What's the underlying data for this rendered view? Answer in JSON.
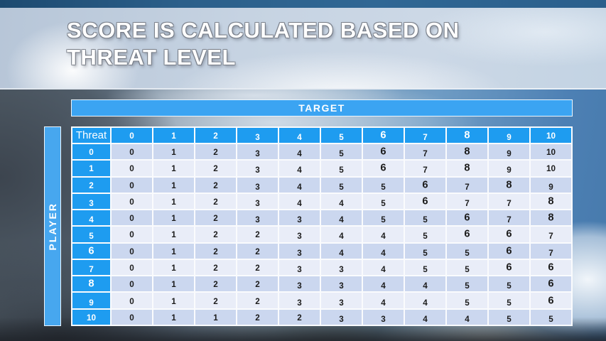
{
  "slide": {
    "title_line1": "SCORE IS CALCULATED BASED ON",
    "title_line2": "THREAT LEVEL"
  },
  "table": {
    "target_label": "TARGET",
    "player_label": "PLAYER",
    "corner_label": "Threat",
    "column_headers": [
      "0",
      "1",
      "2",
      "3",
      "4",
      "5",
      "6",
      "7",
      "8",
      "9",
      "10"
    ],
    "rows": [
      {
        "label": "0",
        "values": [
          0,
          1,
          2,
          3,
          4,
          5,
          6,
          7,
          8,
          9,
          10
        ]
      },
      {
        "label": "1",
        "values": [
          0,
          1,
          2,
          3,
          4,
          5,
          6,
          7,
          8,
          9,
          10
        ]
      },
      {
        "label": "2",
        "values": [
          0,
          1,
          2,
          3,
          4,
          5,
          5,
          6,
          7,
          8,
          9
        ]
      },
      {
        "label": "3",
        "values": [
          0,
          1,
          2,
          3,
          4,
          4,
          5,
          6,
          7,
          7,
          8
        ]
      },
      {
        "label": "4",
        "values": [
          0,
          1,
          2,
          3,
          3,
          4,
          5,
          5,
          6,
          7,
          8
        ]
      },
      {
        "label": "5",
        "values": [
          0,
          1,
          2,
          2,
          3,
          4,
          4,
          5,
          6,
          6,
          7
        ]
      },
      {
        "label": "6",
        "values": [
          0,
          1,
          2,
          2,
          3,
          4,
          4,
          5,
          5,
          6,
          7
        ]
      },
      {
        "label": "7",
        "values": [
          0,
          1,
          2,
          2,
          3,
          3,
          4,
          5,
          5,
          6,
          6
        ]
      },
      {
        "label": "8",
        "values": [
          0,
          1,
          2,
          2,
          3,
          3,
          4,
          4,
          5,
          5,
          6
        ]
      },
      {
        "label": "9",
        "values": [
          0,
          1,
          2,
          2,
          3,
          3,
          4,
          4,
          5,
          5,
          6
        ]
      },
      {
        "label": "10",
        "values": [
          0,
          1,
          1,
          2,
          2,
          3,
          3,
          4,
          4,
          5,
          5
        ]
      }
    ]
  },
  "colors": {
    "header_blue": "#1e9cf0",
    "bar_blue": "#3ba4f2",
    "row_even": "#cbd7ef",
    "row_odd": "#e9edf8",
    "top_strip_blue": "#2b5f8a"
  }
}
